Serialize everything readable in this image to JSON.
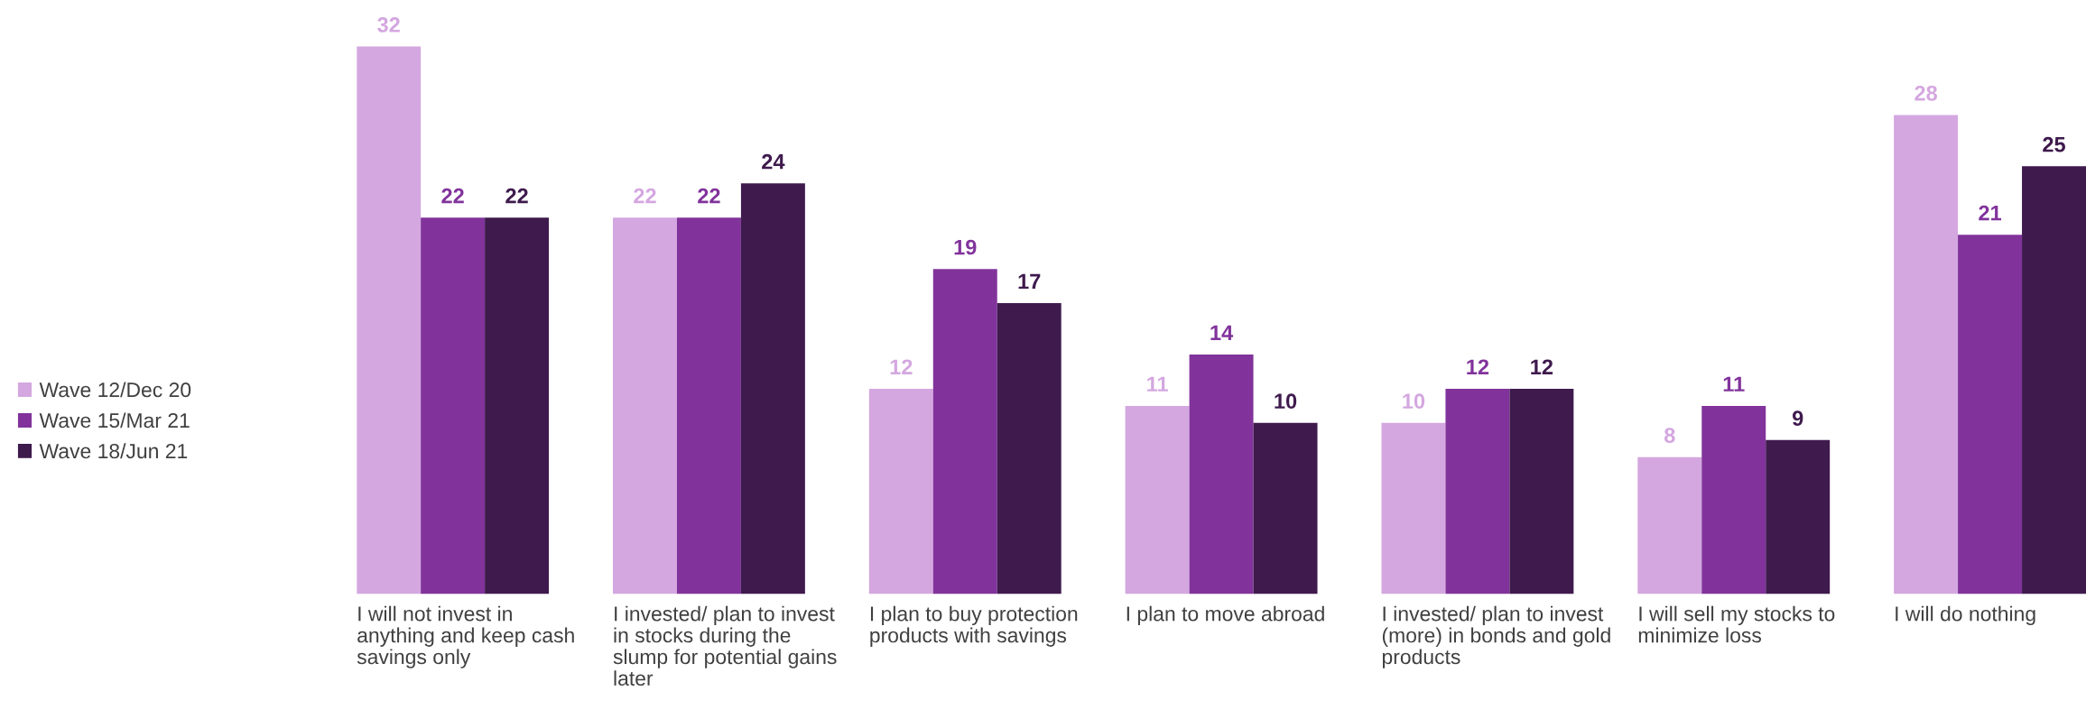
{
  "chart_data": {
    "type": "bar",
    "categories": [
      "I will not invest in anything and keep cash savings only",
      "I invested/ plan to invest in stocks during the slump for potential gains later",
      "I plan to buy protection products with savings",
      "I plan to move abroad",
      "I invested/ plan to invest (more) in bonds and gold products",
      "I will sell my stocks to minimize loss",
      "I will do nothing"
    ],
    "series": [
      {
        "name": "Wave 12/Dec 20",
        "color": "#d4a7e0",
        "values": [
          32,
          22,
          12,
          11,
          10,
          8,
          28
        ]
      },
      {
        "name": "Wave 15/Mar 21",
        "color": "#81339b",
        "values": [
          22,
          22,
          19,
          14,
          12,
          11,
          21
        ]
      },
      {
        "name": "Wave 18/Jun 21",
        "color": "#3f1a4d",
        "values": [
          22,
          24,
          17,
          10,
          12,
          9,
          25
        ]
      }
    ],
    "data_labels": true,
    "legend": "left"
  }
}
